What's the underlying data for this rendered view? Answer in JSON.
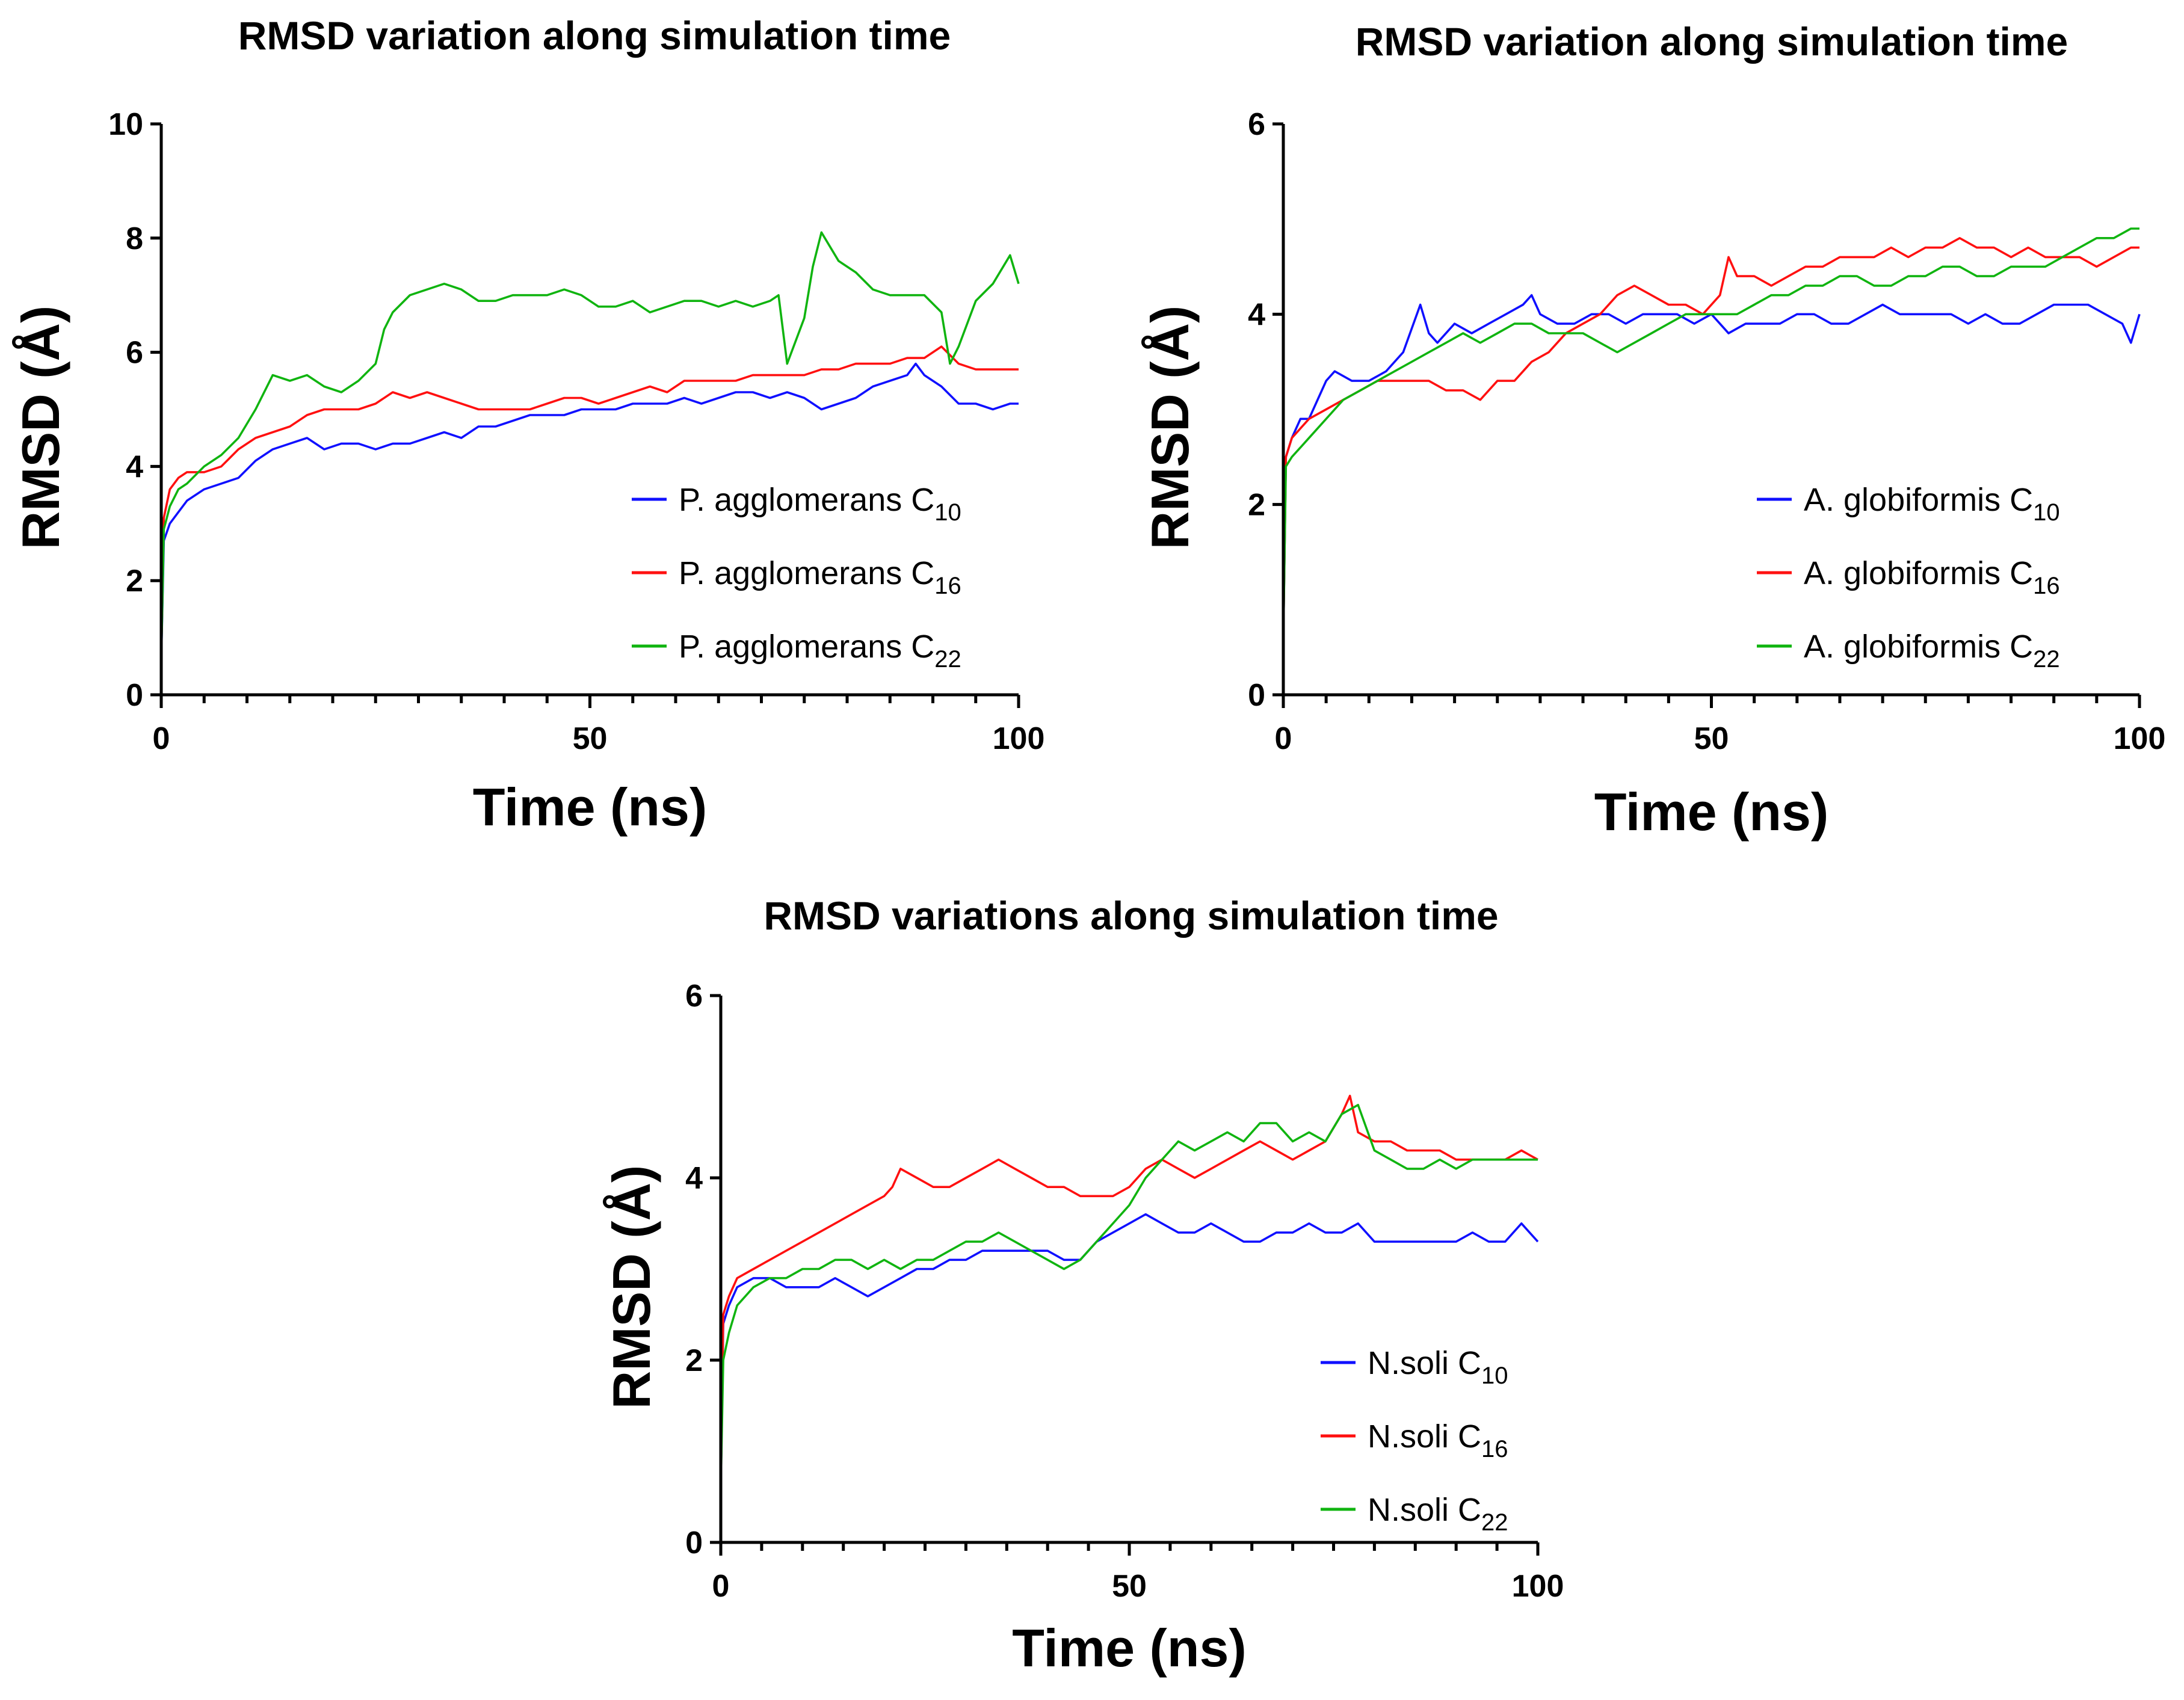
{
  "colors": {
    "c10": "#1010ff",
    "c16": "#ff1010",
    "c22": "#10b410"
  },
  "chart_data": [
    {
      "type": "line",
      "title": "RMSD variation along simulation time",
      "xlabel": "Time (ns)",
      "ylabel": "RMSD (Å)",
      "xlim": [
        0,
        100
      ],
      "ylim": [
        0,
        10
      ],
      "xticks": [
        0,
        50,
        100
      ],
      "yticks": [
        0,
        2,
        4,
        6,
        8,
        10
      ],
      "legend_position": "right",
      "series": [
        {
          "name": "P. agglomerans C10",
          "label": "P. agglomerans C",
          "sub": "10",
          "color_key": "c10",
          "x": [
            0,
            0.3,
            1,
            2,
            3,
            5,
            7,
            9,
            11,
            13,
            15,
            17,
            19,
            21,
            23,
            25,
            27,
            29,
            31,
            33,
            35,
            37,
            39,
            41,
            43,
            45,
            47,
            49,
            51,
            53,
            55,
            57,
            59,
            61,
            63,
            65,
            67,
            69,
            71,
            73,
            75,
            77,
            79,
            81,
            83,
            85,
            87,
            88,
            89,
            91,
            93,
            95,
            97,
            99,
            100
          ],
          "y": [
            0.6,
            2.7,
            3.0,
            3.2,
            3.4,
            3.6,
            3.7,
            3.8,
            4.1,
            4.3,
            4.4,
            4.5,
            4.3,
            4.4,
            4.4,
            4.3,
            4.4,
            4.4,
            4.5,
            4.6,
            4.5,
            4.7,
            4.7,
            4.8,
            4.9,
            4.9,
            4.9,
            5.0,
            5.0,
            5.0,
            5.1,
            5.1,
            5.1,
            5.2,
            5.1,
            5.2,
            5.3,
            5.3,
            5.2,
            5.3,
            5.2,
            5.0,
            5.1,
            5.2,
            5.4,
            5.5,
            5.6,
            5.8,
            5.6,
            5.4,
            5.1,
            5.1,
            5.0,
            5.1,
            5.1
          ]
        },
        {
          "name": "P. agglomerans C16",
          "label": "P. agglomerans C",
          "sub": "16",
          "color_key": "c16",
          "x": [
            0,
            0.3,
            1,
            2,
            3,
            5,
            7,
            9,
            11,
            13,
            15,
            17,
            19,
            21,
            23,
            25,
            27,
            29,
            31,
            33,
            35,
            37,
            39,
            41,
            43,
            45,
            47,
            49,
            51,
            53,
            55,
            57,
            59,
            61,
            63,
            65,
            67,
            69,
            71,
            73,
            75,
            77,
            79,
            81,
            83,
            85,
            87,
            89,
            91,
            93,
            95,
            97,
            99,
            100
          ],
          "y": [
            0.6,
            3.1,
            3.6,
            3.8,
            3.9,
            3.9,
            4.0,
            4.3,
            4.5,
            4.6,
            4.7,
            4.9,
            5.0,
            5.0,
            5.0,
            5.1,
            5.3,
            5.2,
            5.3,
            5.2,
            5.1,
            5.0,
            5.0,
            5.0,
            5.0,
            5.1,
            5.2,
            5.2,
            5.1,
            5.2,
            5.3,
            5.4,
            5.3,
            5.5,
            5.5,
            5.5,
            5.5,
            5.6,
            5.6,
            5.6,
            5.6,
            5.7,
            5.7,
            5.8,
            5.8,
            5.8,
            5.9,
            5.9,
            6.1,
            5.8,
            5.7,
            5.7,
            5.7,
            5.7
          ]
        },
        {
          "name": "P. agglomerans C22",
          "label": "P. agglomerans C",
          "sub": "22",
          "color_key": "c22",
          "x": [
            0,
            0.3,
            1,
            2,
            3,
            5,
            7,
            9,
            11,
            13,
            15,
            17,
            19,
            21,
            23,
            25,
            26,
            27,
            29,
            31,
            33,
            35,
            37,
            39,
            41,
            43,
            45,
            47,
            49,
            51,
            53,
            55,
            57,
            59,
            61,
            63,
            65,
            67,
            69,
            71,
            72,
            73,
            75,
            76,
            77,
            79,
            81,
            83,
            85,
            87,
            89,
            91,
            92,
            93,
            95,
            97,
            99,
            100
          ],
          "y": [
            0.6,
            2.9,
            3.3,
            3.6,
            3.7,
            4.0,
            4.2,
            4.5,
            5.0,
            5.6,
            5.5,
            5.6,
            5.4,
            5.3,
            5.5,
            5.8,
            6.4,
            6.7,
            7.0,
            7.1,
            7.2,
            7.1,
            6.9,
            6.9,
            7.0,
            7.0,
            7.0,
            7.1,
            7.0,
            6.8,
            6.8,
            6.9,
            6.7,
            6.8,
            6.9,
            6.9,
            6.8,
            6.9,
            6.8,
            6.9,
            7.0,
            5.8,
            6.6,
            7.5,
            8.1,
            7.6,
            7.4,
            7.1,
            7.0,
            7.0,
            7.0,
            6.7,
            5.8,
            6.1,
            6.9,
            7.2,
            7.7,
            7.2
          ]
        }
      ]
    },
    {
      "type": "line",
      "title": "RMSD variation along simulation time",
      "xlabel": "Time (ns)",
      "ylabel": "RMSD (Å)",
      "xlim": [
        0,
        100
      ],
      "ylim": [
        0,
        6
      ],
      "xticks": [
        0,
        50,
        100
      ],
      "yticks": [
        0,
        2,
        4,
        6
      ],
      "legend_position": "right",
      "series": [
        {
          "name": "A. globiformis C10",
          "label": "A. globiformis C",
          "sub": "10",
          "color_key": "c10",
          "x": [
            0,
            0.3,
            1,
            2,
            3,
            4,
            5,
            6,
            8,
            10,
            12,
            14,
            16,
            17,
            18,
            20,
            22,
            24,
            26,
            28,
            29,
            30,
            32,
            34,
            36,
            38,
            40,
            42,
            44,
            46,
            48,
            50,
            52,
            54,
            56,
            58,
            60,
            62,
            64,
            66,
            68,
            70,
            72,
            74,
            76,
            78,
            80,
            82,
            84,
            86,
            88,
            90,
            92,
            94,
            96,
            98,
            99,
            100
          ],
          "y": [
            0.6,
            2.5,
            2.7,
            2.9,
            2.9,
            3.1,
            3.3,
            3.4,
            3.3,
            3.3,
            3.4,
            3.6,
            4.1,
            3.8,
            3.7,
            3.9,
            3.8,
            3.9,
            4.0,
            4.1,
            4.2,
            4.0,
            3.9,
            3.9,
            4.0,
            4.0,
            3.9,
            4.0,
            4.0,
            4.0,
            3.9,
            4.0,
            3.8,
            3.9,
            3.9,
            3.9,
            4.0,
            4.0,
            3.9,
            3.9,
            4.0,
            4.1,
            4.0,
            4.0,
            4.0,
            4.0,
            3.9,
            4.0,
            3.9,
            3.9,
            4.0,
            4.1,
            4.1,
            4.1,
            4.0,
            3.9,
            3.7,
            4.0
          ]
        },
        {
          "name": "A. globiformis C16",
          "label": "A. globiformis C",
          "sub": "16",
          "color_key": "c16",
          "x": [
            0,
            0.3,
            1,
            2,
            3,
            5,
            7,
            9,
            11,
            13,
            15,
            17,
            19,
            21,
            23,
            25,
            27,
            29,
            31,
            33,
            35,
            37,
            39,
            41,
            43,
            45,
            47,
            49,
            51,
            52,
            53,
            55,
            57,
            59,
            61,
            63,
            65,
            67,
            69,
            71,
            73,
            75,
            77,
            79,
            81,
            83,
            85,
            87,
            89,
            91,
            93,
            95,
            97,
            99,
            100
          ],
          "y": [
            0.6,
            2.5,
            2.7,
            2.8,
            2.9,
            3.0,
            3.1,
            3.2,
            3.3,
            3.3,
            3.3,
            3.3,
            3.2,
            3.2,
            3.1,
            3.3,
            3.3,
            3.5,
            3.6,
            3.8,
            3.9,
            4.0,
            4.2,
            4.3,
            4.2,
            4.1,
            4.1,
            4.0,
            4.2,
            4.6,
            4.4,
            4.4,
            4.3,
            4.4,
            4.5,
            4.5,
            4.6,
            4.6,
            4.6,
            4.7,
            4.6,
            4.7,
            4.7,
            4.8,
            4.7,
            4.7,
            4.6,
            4.7,
            4.6,
            4.6,
            4.6,
            4.5,
            4.6,
            4.7,
            4.7
          ]
        },
        {
          "name": "A. globiformis C22",
          "label": "A. globiformis C",
          "sub": "22",
          "color_key": "c22",
          "x": [
            0,
            0.3,
            1,
            2,
            3,
            5,
            7,
            9,
            11,
            13,
            15,
            17,
            19,
            21,
            23,
            25,
            27,
            29,
            31,
            33,
            35,
            37,
            39,
            41,
            43,
            45,
            47,
            49,
            51,
            53,
            55,
            57,
            59,
            61,
            63,
            65,
            67,
            69,
            71,
            73,
            75,
            77,
            79,
            81,
            83,
            85,
            87,
            89,
            91,
            93,
            95,
            97,
            99,
            100
          ],
          "y": [
            0.6,
            2.4,
            2.5,
            2.6,
            2.7,
            2.9,
            3.1,
            3.2,
            3.3,
            3.4,
            3.5,
            3.6,
            3.7,
            3.8,
            3.7,
            3.8,
            3.9,
            3.9,
            3.8,
            3.8,
            3.8,
            3.7,
            3.6,
            3.7,
            3.8,
            3.9,
            4.0,
            4.0,
            4.0,
            4.0,
            4.1,
            4.2,
            4.2,
            4.3,
            4.3,
            4.4,
            4.4,
            4.3,
            4.3,
            4.4,
            4.4,
            4.5,
            4.5,
            4.4,
            4.4,
            4.5,
            4.5,
            4.5,
            4.6,
            4.7,
            4.8,
            4.8,
            4.9,
            4.9
          ]
        }
      ]
    },
    {
      "type": "line",
      "title": "RMSD variations along simulation time",
      "xlabel": "Time (ns)",
      "ylabel": "RMSD (Å)",
      "xlim": [
        0,
        100
      ],
      "ylim": [
        0,
        6
      ],
      "xticks": [
        0,
        50,
        100
      ],
      "yticks": [
        0,
        2,
        4,
        6
      ],
      "legend_position": "right",
      "series": [
        {
          "name": "N.soli C10",
          "label": "N.soli C",
          "sub": "10",
          "color_key": "c10",
          "x": [
            0,
            0.3,
            1,
            2,
            4,
            6,
            8,
            10,
            12,
            14,
            16,
            18,
            20,
            22,
            24,
            26,
            28,
            30,
            32,
            34,
            36,
            38,
            40,
            42,
            44,
            46,
            48,
            50,
            52,
            54,
            56,
            58,
            60,
            62,
            64,
            66,
            68,
            70,
            72,
            74,
            76,
            78,
            80,
            82,
            84,
            86,
            88,
            90,
            92,
            94,
            96,
            98,
            100
          ],
          "y": [
            0.6,
            2.4,
            2.6,
            2.8,
            2.9,
            2.9,
            2.8,
            2.8,
            2.8,
            2.9,
            2.8,
            2.7,
            2.8,
            2.9,
            3.0,
            3.0,
            3.1,
            3.1,
            3.2,
            3.2,
            3.2,
            3.2,
            3.2,
            3.1,
            3.1,
            3.3,
            3.4,
            3.5,
            3.6,
            3.5,
            3.4,
            3.4,
            3.5,
            3.4,
            3.3,
            3.3,
            3.4,
            3.4,
            3.5,
            3.4,
            3.4,
            3.5,
            3.3,
            3.3,
            3.3,
            3.3,
            3.3,
            3.3,
            3.4,
            3.3,
            3.3,
            3.5,
            3.3
          ]
        },
        {
          "name": "N.soli C16",
          "label": "N.soli C",
          "sub": "16",
          "color_key": "c16",
          "x": [
            0,
            0.3,
            1,
            2,
            4,
            6,
            8,
            10,
            12,
            14,
            16,
            18,
            20,
            21,
            22,
            24,
            26,
            28,
            30,
            32,
            34,
            36,
            38,
            40,
            42,
            44,
            46,
            48,
            50,
            52,
            54,
            56,
            58,
            60,
            62,
            64,
            66,
            68,
            70,
            72,
            74,
            76,
            77,
            78,
            80,
            82,
            84,
            86,
            88,
            90,
            92,
            94,
            96,
            98,
            100
          ],
          "y": [
            0.6,
            2.5,
            2.7,
            2.9,
            3.0,
            3.1,
            3.2,
            3.3,
            3.4,
            3.5,
            3.6,
            3.7,
            3.8,
            3.9,
            4.1,
            4.0,
            3.9,
            3.9,
            4.0,
            4.1,
            4.2,
            4.1,
            4.0,
            3.9,
            3.9,
            3.8,
            3.8,
            3.8,
            3.9,
            4.1,
            4.2,
            4.1,
            4.0,
            4.1,
            4.2,
            4.3,
            4.4,
            4.3,
            4.2,
            4.3,
            4.4,
            4.7,
            4.9,
            4.5,
            4.4,
            4.4,
            4.3,
            4.3,
            4.3,
            4.2,
            4.2,
            4.2,
            4.2,
            4.3,
            4.2
          ]
        },
        {
          "name": "N.soli C22",
          "label": "N.soli C",
          "sub": "22",
          "color_key": "c22",
          "x": [
            0,
            0.3,
            1,
            2,
            4,
            6,
            8,
            10,
            12,
            14,
            16,
            18,
            20,
            22,
            24,
            26,
            28,
            30,
            32,
            34,
            36,
            38,
            40,
            42,
            44,
            46,
            48,
            50,
            52,
            54,
            56,
            58,
            60,
            62,
            64,
            66,
            68,
            70,
            72,
            74,
            76,
            78,
            80,
            82,
            84,
            86,
            88,
            90,
            92,
            94,
            96,
            98,
            100
          ],
          "y": [
            0.6,
            2.0,
            2.3,
            2.6,
            2.8,
            2.9,
            2.9,
            3.0,
            3.0,
            3.1,
            3.1,
            3.0,
            3.1,
            3.0,
            3.1,
            3.1,
            3.2,
            3.3,
            3.3,
            3.4,
            3.3,
            3.2,
            3.1,
            3.0,
            3.1,
            3.3,
            3.5,
            3.7,
            4.0,
            4.2,
            4.4,
            4.3,
            4.4,
            4.5,
            4.4,
            4.6,
            4.6,
            4.4,
            4.5,
            4.4,
            4.7,
            4.8,
            4.3,
            4.2,
            4.1,
            4.1,
            4.2,
            4.1,
            4.2,
            4.2,
            4.2,
            4.2,
            4.2
          ]
        }
      ]
    }
  ]
}
